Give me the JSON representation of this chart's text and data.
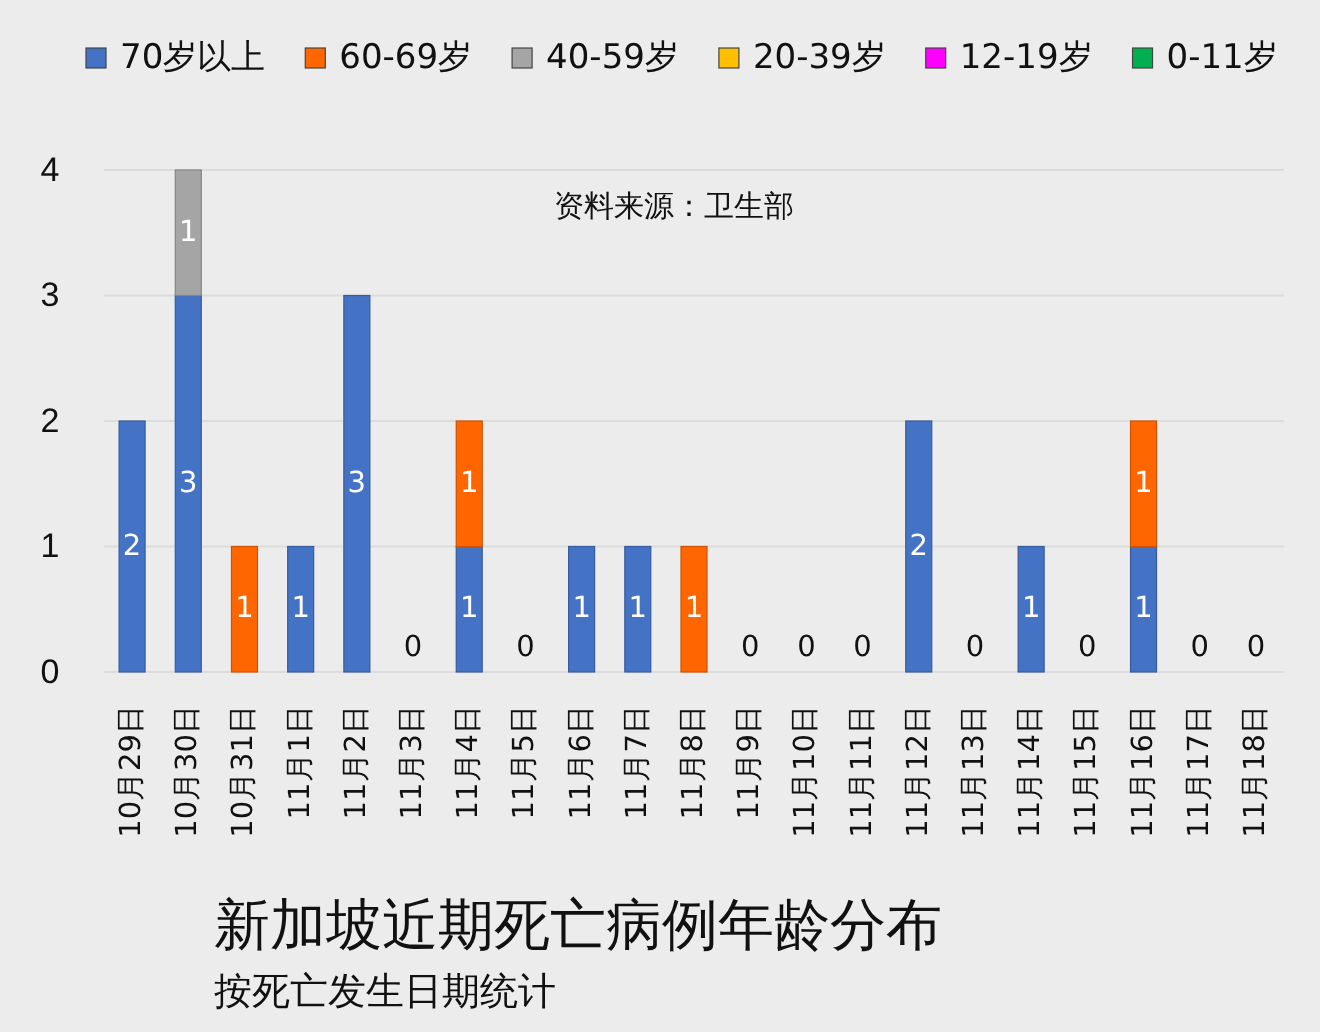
{
  "chart_data": {
    "type": "bar",
    "stacked": true,
    "title": "新加坡近期死亡病例年龄分布",
    "subtitle": "按死亡发生日期统计",
    "annotations": [
      "资料来源：卫生部"
    ],
    "categories": [
      "10月29日",
      "10月30日",
      "10月31日",
      "11月1日",
      "11月2日",
      "11月3日",
      "11月4日",
      "11月5日",
      "11月6日",
      "11月7日",
      "11月8日",
      "11月9日",
      "11月10日",
      "11月11日",
      "11月12日",
      "11月13日",
      "11月14日",
      "11月15日",
      "11月16日",
      "11月17日",
      "11月18日"
    ],
    "series": [
      {
        "name": "70岁以上",
        "color": "#4472c4",
        "values": [
          2,
          3,
          0,
          1,
          3,
          0,
          1,
          0,
          1,
          1,
          0,
          0,
          0,
          0,
          2,
          0,
          1,
          0,
          1,
          0,
          0
        ],
        "value_labels": [
          "2",
          "3",
          null,
          "1",
          "3",
          "0",
          "1",
          "0",
          "1",
          "1",
          null,
          "0",
          "0",
          "0",
          "2",
          "0",
          "1",
          "0",
          "1",
          "0",
          "0"
        ]
      },
      {
        "name": "60-69岁",
        "color": "#ff6600",
        "values": [
          0,
          0,
          1,
          0,
          0,
          0,
          1,
          0,
          0,
          0,
          1,
          0,
          0,
          0,
          0,
          0,
          0,
          0,
          1,
          0,
          0
        ],
        "value_labels": [
          null,
          null,
          "1",
          null,
          null,
          null,
          "1",
          null,
          null,
          null,
          "1",
          null,
          null,
          null,
          null,
          null,
          null,
          null,
          "1",
          null,
          null
        ]
      },
      {
        "name": "40-59岁",
        "color": "#a5a5a5",
        "values": [
          0,
          1,
          0,
          0,
          0,
          0,
          0,
          0,
          0,
          0,
          0,
          0,
          0,
          0,
          0,
          0,
          0,
          0,
          0,
          0,
          0
        ],
        "value_labels": [
          null,
          "1",
          null,
          null,
          null,
          null,
          null,
          null,
          null,
          null,
          null,
          null,
          null,
          null,
          null,
          null,
          null,
          null,
          null,
          null,
          null
        ]
      },
      {
        "name": "20-39岁",
        "color": "#ffc000",
        "values": [
          0,
          0,
          0,
          0,
          0,
          0,
          0,
          0,
          0,
          0,
          0,
          0,
          0,
          0,
          0,
          0,
          0,
          0,
          0,
          0,
          0
        ]
      },
      {
        "name": "12-19岁",
        "color": "#ff00ff",
        "values": [
          0,
          0,
          0,
          0,
          0,
          0,
          0,
          0,
          0,
          0,
          0,
          0,
          0,
          0,
          0,
          0,
          0,
          0,
          0,
          0,
          0
        ]
      },
      {
        "name": "0-11岁",
        "color": "#00b050",
        "values": [
          0,
          0,
          0,
          0,
          0,
          0,
          0,
          0,
          0,
          0,
          0,
          0,
          0,
          0,
          0,
          0,
          0,
          0,
          0,
          0,
          0
        ]
      }
    ],
    "ylim": [
      0,
      4
    ],
    "yticks": [
      0,
      1,
      2,
      3,
      4
    ],
    "grid": "y",
    "legend": "top"
  }
}
